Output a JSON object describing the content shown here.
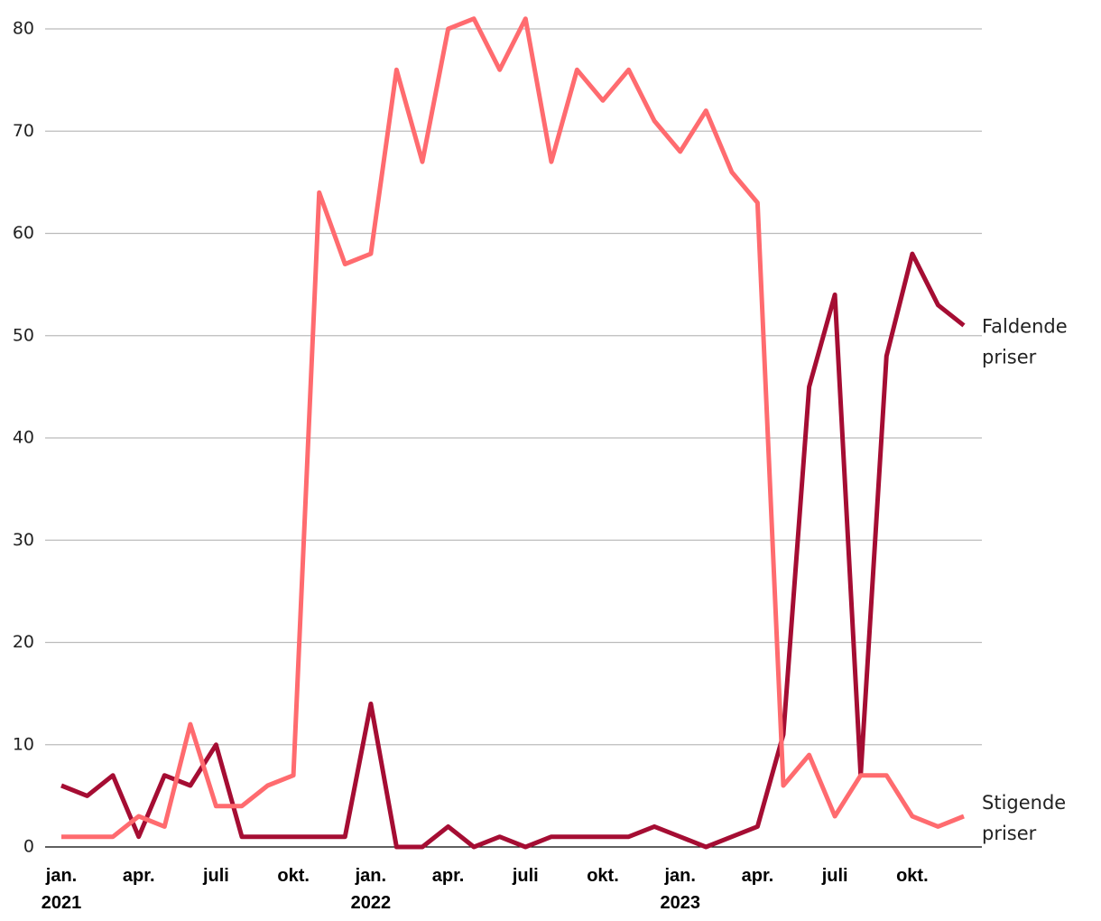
{
  "chart_data": {
    "type": "line",
    "categories": [
      "jan.\n2021",
      null,
      null,
      "apr.",
      null,
      null,
      "juli",
      null,
      null,
      "okt.",
      null,
      null,
      "jan.\n2022",
      null,
      null,
      "apr.",
      null,
      null,
      "juli",
      null,
      null,
      "okt.",
      null,
      null,
      "jan.\n2023",
      null,
      null,
      "apr.",
      null,
      null,
      "juli",
      null,
      null,
      "okt.",
      null,
      null
    ],
    "series": [
      {
        "name": "Faldende priser",
        "color": "#a50d33",
        "values": [
          6,
          5,
          7,
          1,
          7,
          6,
          10,
          1,
          1,
          1,
          1,
          1,
          14,
          0,
          0,
          2,
          0,
          1,
          0,
          1,
          1,
          1,
          1,
          2,
          1,
          0,
          1,
          2,
          11,
          45,
          54,
          7,
          48,
          58,
          53,
          51
        ]
      },
      {
        "name": "Stigende priser",
        "color": "#ff6b6f",
        "values": [
          1,
          1,
          1,
          3,
          2,
          12,
          4,
          4,
          6,
          7,
          64,
          57,
          58,
          76,
          67,
          80,
          81,
          76,
          81,
          67,
          76,
          73,
          76,
          71,
          68,
          72,
          66,
          63,
          6,
          9,
          3,
          7,
          7,
          3,
          2,
          3
        ]
      }
    ],
    "ylim": [
      0,
      80
    ],
    "yticks": [
      0,
      10,
      20,
      30,
      40,
      50,
      60,
      70,
      80
    ],
    "grid": true
  }
}
